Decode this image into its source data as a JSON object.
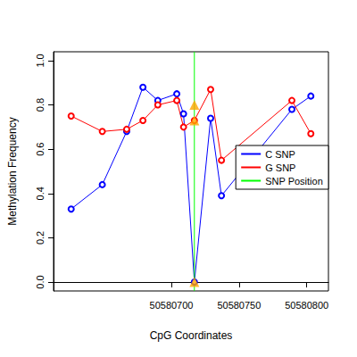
{
  "chart_data": {
    "type": "line",
    "x_label": "CpG Coordinates",
    "y_label": "Methylation Frequency",
    "xlim": [
      50580613,
      50580816
    ],
    "xticks": [
      50580700,
      50580750,
      50580800
    ],
    "ylim": [
      -0.04,
      1.04
    ],
    "yticks": [
      {
        "value": 0,
        "label": "0.0"
      },
      {
        "value": 0.2,
        "label": "0.2"
      },
      {
        "value": 0.4,
        "label": "0.4"
      },
      {
        "value": 0.6,
        "label": "0.6"
      },
      {
        "value": 0.8,
        "label": "0.8"
      },
      {
        "value": 1,
        "label": "1.0"
      }
    ],
    "x": [
      50580626,
      50580649,
      50580667,
      50580679,
      50580690,
      50580704,
      50580709,
      50580717,
      50580729,
      50580737,
      50580789,
      50580803
    ],
    "series": [
      {
        "name": "C SNP",
        "color": "#0000ff",
        "marker": "circle",
        "values": [
          0.33,
          0.44,
          0.68,
          0.88,
          0.82,
          0.85,
          0.76,
          0.0,
          0.74,
          0.39,
          0.78,
          0.84
        ]
      },
      {
        "name": "G SNP",
        "color": "#ff0000",
        "marker": "circle",
        "values": [
          0.75,
          0.68,
          0.69,
          0.73,
          0.8,
          0.82,
          0.7,
          0.73,
          0.87,
          0.55,
          0.82,
          0.67
        ]
      },
      {
        "name": "SNP Position",
        "color": "#00ff00",
        "type": "vline",
        "x": 50580717
      }
    ],
    "snp_markers": {
      "x": 50580717,
      "values": [
        0.8,
        0.73,
        0.0
      ],
      "color": "#ffa500",
      "marker": "triangle"
    },
    "legend": "right",
    "grid": false
  }
}
